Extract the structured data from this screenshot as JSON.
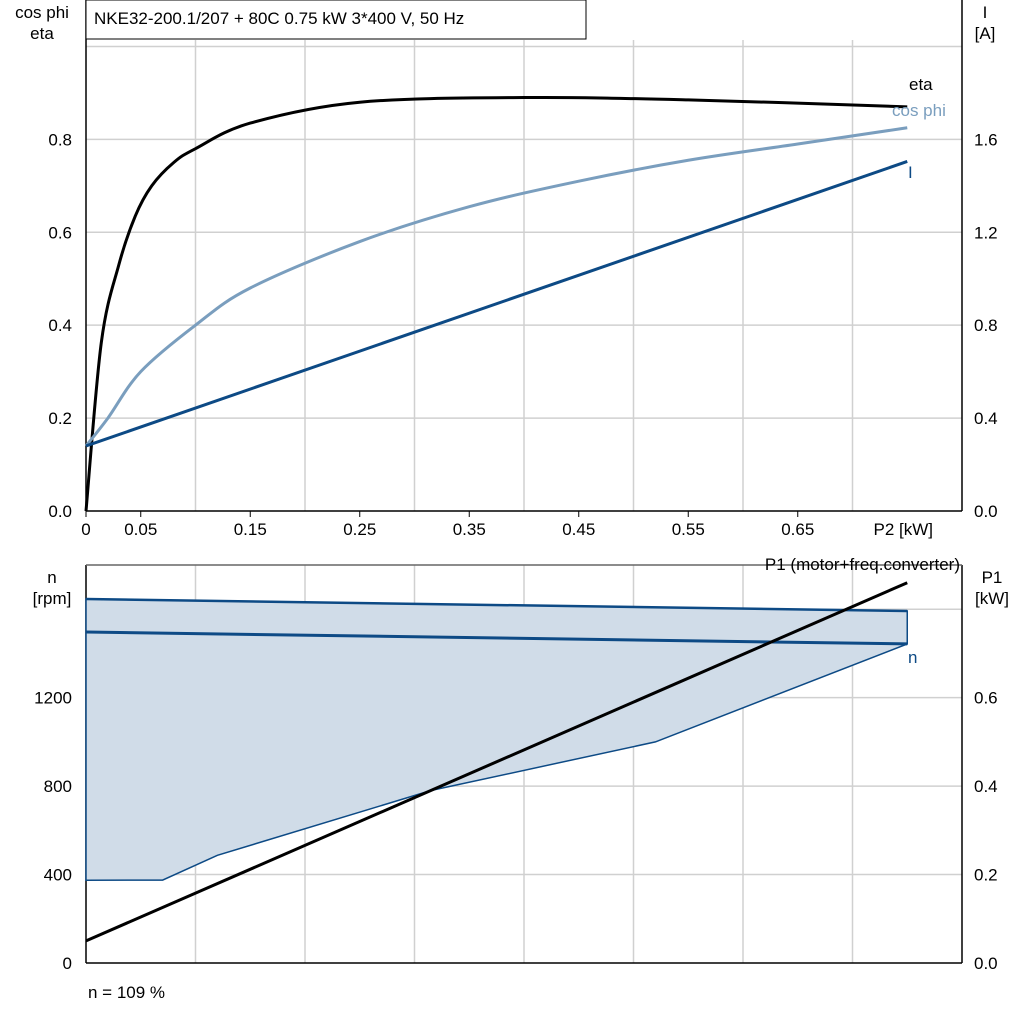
{
  "chart_data": [
    {
      "type": "line",
      "title": "NKE32-200.1/207 + 80C   0.75 kW   3*400 V, 50 Hz",
      "xlabel": "P2 [kW]",
      "ylabel_left": [
        "cos phi",
        "eta"
      ],
      "ylabel_right": [
        "I",
        "[A]"
      ],
      "xlim": [
        0,
        0.8
      ],
      "ylim_left": [
        0,
        1.1
      ],
      "ylim_right": [
        0,
        2.2
      ],
      "xticks": [
        "0",
        "0.05",
        "0.15",
        "0.25",
        "0.35",
        "0.45",
        "0.55",
        "0.65"
      ],
      "xtick_values": [
        0,
        0.05,
        0.15,
        0.25,
        0.35,
        0.45,
        0.55,
        0.65
      ],
      "yticks_left": [
        "0.0",
        "0.2",
        "0.4",
        "0.6",
        "0.8"
      ],
      "yticks_right": [
        "0.0",
        "0.4",
        "0.8",
        "1.2",
        "1.6"
      ],
      "grid": true,
      "series": [
        {
          "name": "eta",
          "axis": "left",
          "color": "#000000",
          "x": [
            0,
            0.014,
            0.03,
            0.045,
            0.06,
            0.08,
            0.1,
            0.15,
            0.25,
            0.4,
            0.55,
            0.75
          ],
          "y": [
            0,
            0.363,
            0.53,
            0.635,
            0.7,
            0.75,
            0.78,
            0.835,
            0.88,
            0.89,
            0.885,
            0.87
          ]
        },
        {
          "name": "cos phi",
          "axis": "left",
          "color": "#7a9ebe",
          "x": [
            0,
            0.02,
            0.05,
            0.1,
            0.15,
            0.25,
            0.35,
            0.45,
            0.55,
            0.65,
            0.75
          ],
          "y": [
            0.14,
            0.2,
            0.3,
            0.4,
            0.48,
            0.58,
            0.655,
            0.71,
            0.755,
            0.79,
            0.825
          ]
        },
        {
          "name": "I",
          "axis": "right",
          "color": "#0d4a85",
          "x": [
            0,
            0.75
          ],
          "y": [
            0.28,
            1.505
          ]
        }
      ]
    },
    {
      "type": "area",
      "xlim": [
        0,
        0.8
      ],
      "ylim_left": [
        0,
        1800
      ],
      "ylim_right": [
        0,
        0.9
      ],
      "ylabel_left": [
        "n",
        "[rpm]"
      ],
      "ylabel_right": [
        "P1",
        "[kW]"
      ],
      "yticks_left": [
        "0",
        "400",
        "800",
        "1200"
      ],
      "yticks_right": [
        "0.0",
        "0.2",
        "0.4",
        "0.6"
      ],
      "grid": true,
      "band": {
        "color": "#d0dce8",
        "upper": {
          "x": [
            0,
            0.75
          ],
          "y": [
            1646,
            1592
          ]
        },
        "lower": {
          "x": [
            0,
            0.07,
            0.12,
            0.315,
            0.52,
            0.75
          ],
          "y": [
            374,
            375,
            487,
            780,
            1000,
            1443
          ]
        }
      },
      "series": [
        {
          "name": "n",
          "axis": "left",
          "color": "#0d4a85",
          "x": [
            0,
            0.75
          ],
          "y": [
            1497,
            1443
          ]
        },
        {
          "name": "P1 (motor+freq.converter)",
          "axis": "right",
          "color": "#000000",
          "x": [
            0,
            0.75
          ],
          "y": [
            0.05,
            0.86
          ]
        }
      ],
      "annotation": "n = 109 %"
    }
  ]
}
